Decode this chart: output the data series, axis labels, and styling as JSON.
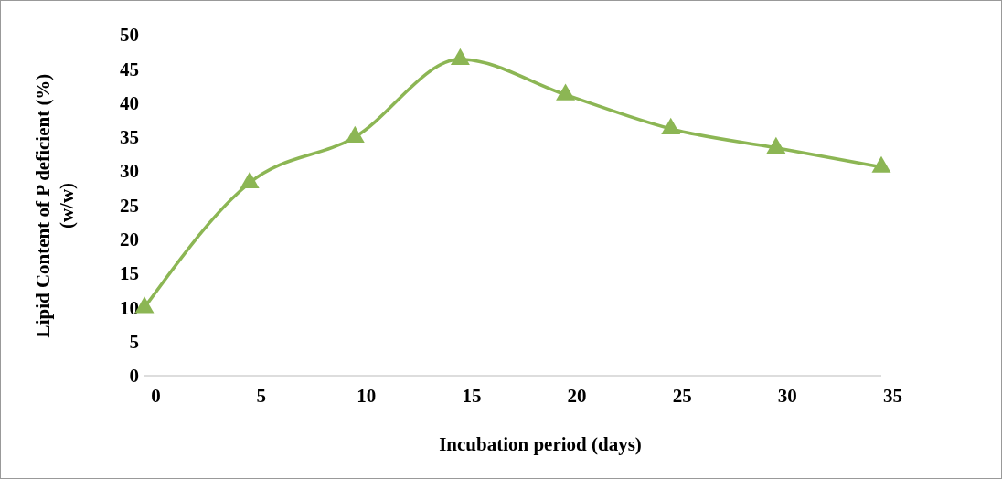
{
  "chart_data": {
    "type": "line",
    "xlabel": "Incubation period (days)",
    "ylabel": "Lipid Content of P deficient (%)\n(w/w)",
    "categories": [
      "0",
      "5",
      "10",
      "15",
      "20",
      "25",
      "30",
      "35"
    ],
    "series": [
      {
        "color": "#8cb654",
        "values": [
          10,
          28.3,
          35,
          46.4,
          41.2,
          36.2,
          33.4,
          30.6
        ]
      }
    ],
    "ylim": [
      0,
      50
    ],
    "yticks": [
      0,
      5,
      10,
      15,
      20,
      25,
      30,
      35,
      40,
      45,
      50
    ],
    "marker": "triangle",
    "line_style": "solid",
    "grid": false,
    "legend": false
  }
}
